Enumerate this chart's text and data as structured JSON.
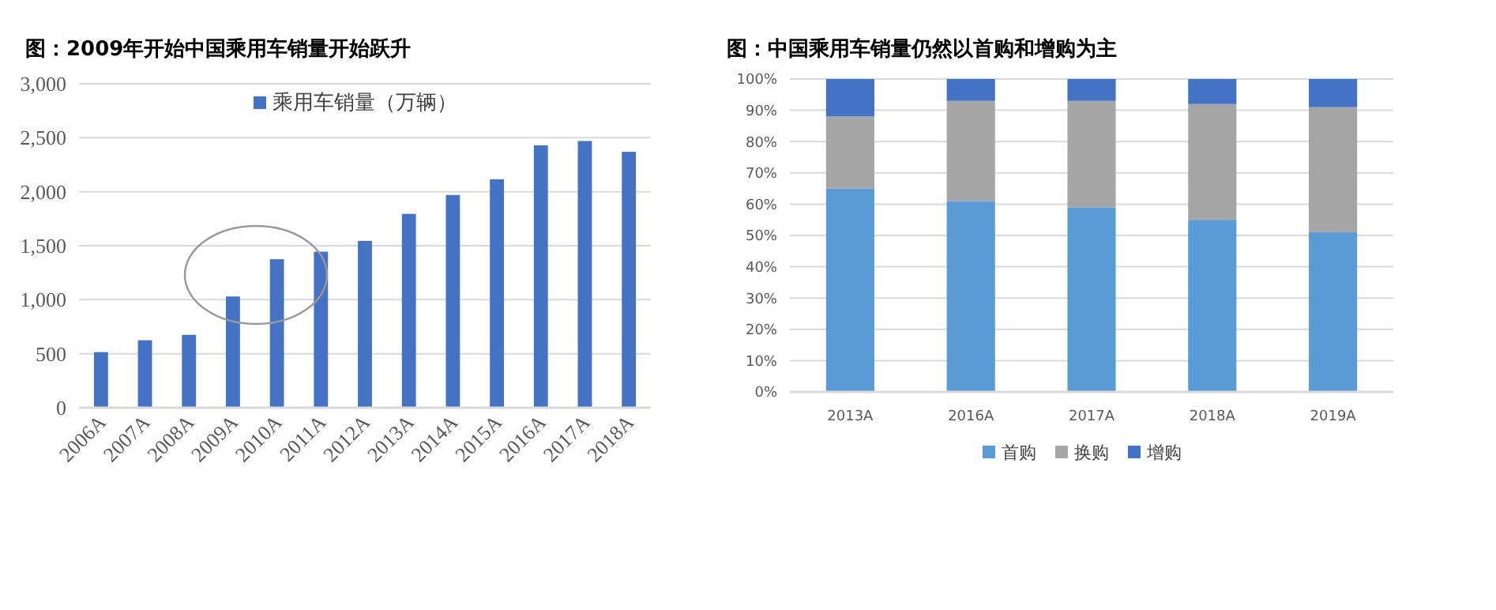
{
  "chart_data": [
    {
      "type": "bar",
      "title": "图：2009年开始中国乘用车销量开始跃升",
      "categories": [
        "2006A",
        "2007A",
        "2008A",
        "2009A",
        "2010A",
        "2011A",
        "2012A",
        "2013A",
        "2014A",
        "2015A",
        "2016A",
        "2017A",
        "2018A"
      ],
      "series": [
        {
          "name": "乘用车销量（万辆）",
          "color": "#4472c4",
          "values": [
            515,
            625,
            675,
            1030,
            1375,
            1445,
            1545,
            1795,
            1970,
            2115,
            2430,
            2470,
            2370
          ]
        }
      ],
      "ylim": [
        0,
        3000
      ],
      "yticks": [
        0,
        500,
        {
          "value": 1000,
          "label": "1,000"
        },
        {
          "value": 1500,
          "label": "1,500"
        },
        {
          "value": 2000,
          "label": "2,000"
        },
        {
          "value": 2500,
          "label": "2,500"
        },
        {
          "value": 3000,
          "label": "3,000"
        }
      ],
      "grid": "y",
      "legend": "top"
    },
    {
      "type": "bar",
      "title": "图：中国乘用车销量仍然以首购和增购为主",
      "categories": [
        "2013A",
        "2016A",
        "2017A",
        "2018A",
        "2019A"
      ],
      "stacked": true,
      "series": [
        {
          "name": "首购",
          "color": "#5b9bd5",
          "values": [
            65,
            61,
            59,
            55,
            51
          ]
        },
        {
          "name": "换购",
          "color": "#a5a5a5",
          "values": [
            23,
            32,
            34,
            37,
            40
          ]
        },
        {
          "name": "增购",
          "color": "#4472c4",
          "values": [
            12,
            7,
            7,
            8,
            9
          ]
        }
      ],
      "ylim": [
        0,
        100
      ],
      "yticks": [
        {
          "value": 0,
          "label": "0%"
        },
        {
          "value": 10,
          "label": "10%"
        },
        {
          "value": 20,
          "label": "20%"
        },
        {
          "value": 30,
          "label": "30%"
        },
        {
          "value": 40,
          "label": "40%"
        },
        {
          "value": 50,
          "label": "50%"
        },
        {
          "value": 60,
          "label": "60%"
        },
        {
          "value": 70,
          "label": "70%"
        },
        {
          "value": 80,
          "label": "80%"
        },
        {
          "value": 90,
          "label": "90%"
        },
        {
          "value": 100,
          "label": "100%"
        }
      ],
      "grid": "y",
      "legend": "bottom"
    }
  ]
}
